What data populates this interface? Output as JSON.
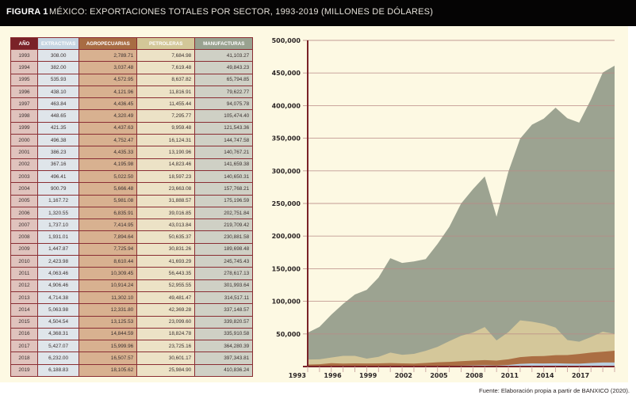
{
  "header": {
    "figure_label": "FIGURA 1",
    "title": "MÉXICO: EXPORTACIONES TOTALES POR SECTOR, 1993-2019 (MILLONES DE DÓLARES)"
  },
  "table": {
    "headers": [
      "AÑO",
      "EXTRACTIVAS",
      "AGROPECUARIAS",
      "PETROLERAS",
      "MANUFACTURAS"
    ],
    "rows": [
      [
        "1993",
        "308.00",
        "2,789.71",
        "7,684.98",
        "41,103.27"
      ],
      [
        "1994",
        "382.00",
        "3,037.48",
        "7,619.48",
        "49,843.23"
      ],
      [
        "1995",
        "535.93",
        "4,572.95",
        "8,637.82",
        "65,794.85"
      ],
      [
        "1996",
        "438.10",
        "4,121.96",
        "11,816.91",
        "79,622.77"
      ],
      [
        "1997",
        "463.84",
        "4,436.45",
        "11,455.44",
        "94,075.78"
      ],
      [
        "1998",
        "448.65",
        "4,320.49",
        "7,295.77",
        "105,474.40"
      ],
      [
        "1999",
        "421.35",
        "4,437.63",
        "9,959.48",
        "121,543.36"
      ],
      [
        "2000",
        "496.38",
        "4,752.47",
        "16,124.31",
        "144,747.58"
      ],
      [
        "2001",
        "386.23",
        "4,435.33",
        "13,190.96",
        "140,767.21"
      ],
      [
        "2002",
        "367.16",
        "4,195.98",
        "14,823.46",
        "141,659.38"
      ],
      [
        "2003",
        "496.41",
        "5,022.50",
        "18,597.23",
        "140,650.31"
      ],
      [
        "2004",
        "900.79",
        "5,666.48",
        "23,663.08",
        "157,768.21"
      ],
      [
        "2005",
        "1,167.72",
        "5,981.08",
        "31,888.57",
        "175,196.59"
      ],
      [
        "2006",
        "1,320.55",
        "6,835.91",
        "39,016.85",
        "202,751.84"
      ],
      [
        "2007",
        "1,737.10",
        "7,414.95",
        "43,013.84",
        "219,709.42"
      ],
      [
        "2008",
        "1,931.01",
        "7,894.64",
        "50,635.37",
        "230,881.58"
      ],
      [
        "2009",
        "1,447.87",
        "7,725.94",
        "30,831.26",
        "189,698.48"
      ],
      [
        "2010",
        "2,423.98",
        "8,610.44",
        "41,693.29",
        "245,745.43"
      ],
      [
        "2011",
        "4,063.46",
        "10,309.45",
        "56,443.35",
        "278,617.13"
      ],
      [
        "2012",
        "4,906.46",
        "10,914.24",
        "52,955.55",
        "301,993.64"
      ],
      [
        "2013",
        "4,714.38",
        "11,302.10",
        "49,481.47",
        "314,517.11"
      ],
      [
        "2014",
        "5,063.98",
        "12,331.80",
        "42,369.28",
        "337,148.57"
      ],
      [
        "2015",
        "4,504.54",
        "13,125.53",
        "23,099.60",
        "339,820.57"
      ],
      [
        "2016",
        "4,368.31",
        "14,844.59",
        "18,824.78",
        "335,910.58"
      ],
      [
        "2017",
        "5,427.07",
        "15,999.96",
        "23,725.16",
        "364,280.39"
      ],
      [
        "2018",
        "6,232.00",
        "16,507.57",
        "30,601.17",
        "397,343.81"
      ],
      [
        "2019",
        "6,188.83",
        "18,105.62",
        "25,984.90",
        "410,836.24"
      ]
    ]
  },
  "chart_data": {
    "type": "area",
    "stacked": true,
    "title": "MÉXICO: EXPORTACIONES TOTALES POR SECTOR, 1993-2019 (MILLONES DE DÓLARES)",
    "xlabel": "",
    "ylabel": "",
    "x": [
      1993,
      1994,
      1995,
      1996,
      1997,
      1998,
      1999,
      2000,
      2001,
      2002,
      2003,
      2004,
      2005,
      2006,
      2007,
      2008,
      2009,
      2010,
      2011,
      2012,
      2013,
      2014,
      2015,
      2016,
      2017,
      2018,
      2019
    ],
    "ylim": [
      0,
      500000
    ],
    "yticks": [
      "50,000",
      "100,000",
      "150,000",
      "200,000",
      "250,000",
      "300,000",
      "350,000",
      "400,000",
      "450,000",
      "500,000"
    ],
    "ytick_values": [
      50000,
      100000,
      150000,
      200000,
      250000,
      300000,
      350000,
      400000,
      450000,
      500000
    ],
    "xticks": [
      "1993",
      "1996",
      "1999",
      "2002",
      "2005",
      "2008",
      "2011",
      "2014",
      "2017"
    ],
    "grid": true,
    "series": [
      {
        "name": "EXTRACTIVAS",
        "color": "#b9cedf",
        "values": [
          308.0,
          382.0,
          535.93,
          438.1,
          463.84,
          448.65,
          421.35,
          496.38,
          386.23,
          367.16,
          496.41,
          900.79,
          1167.72,
          1320.55,
          1737.1,
          1931.01,
          1447.87,
          2423.98,
          4063.46,
          4906.46,
          4714.38,
          5063.98,
          4504.54,
          4368.31,
          5427.07,
          6232.0,
          6188.83
        ]
      },
      {
        "name": "AGROPECUARIAS",
        "color": "#ab6e43",
        "values": [
          2789.71,
          3037.48,
          4572.95,
          4121.96,
          4436.45,
          4320.49,
          4437.63,
          4752.47,
          4435.33,
          4195.98,
          5022.5,
          5666.48,
          5981.08,
          6835.91,
          7414.95,
          7894.64,
          7725.94,
          8610.44,
          10309.45,
          10914.24,
          11302.1,
          12331.8,
          13125.53,
          14844.59,
          15999.96,
          16507.57,
          18105.62
        ]
      },
      {
        "name": "PETROLERAS",
        "color": "#d4c79a",
        "values": [
          7684.98,
          7619.48,
          8637.82,
          11816.91,
          11455.44,
          7295.77,
          9959.48,
          16124.31,
          13190.96,
          14823.46,
          18597.23,
          23663.08,
          31888.57,
          39016.85,
          43013.84,
          50635.37,
          30831.26,
          41693.29,
          56443.35,
          52955.55,
          49481.47,
          42369.28,
          23099.6,
          18824.78,
          23725.16,
          30601.17,
          25984.9
        ]
      },
      {
        "name": "MANUFACTURAS",
        "color": "#9ca391",
        "values": [
          41103.27,
          49843.23,
          65794.85,
          79622.77,
          94075.78,
          105474.4,
          121543.36,
          144747.58,
          140767.21,
          141659.38,
          140650.31,
          157768.21,
          175196.59,
          202751.84,
          219709.42,
          230881.58,
          189698.48,
          245745.43,
          278617.13,
          301993.64,
          314517.11,
          337148.57,
          339820.57,
          335910.58,
          364280.39,
          397343.81,
          410836.24
        ]
      }
    ]
  },
  "source": "Fuente: Elaboración propia a partir de BANXICO (2020)."
}
